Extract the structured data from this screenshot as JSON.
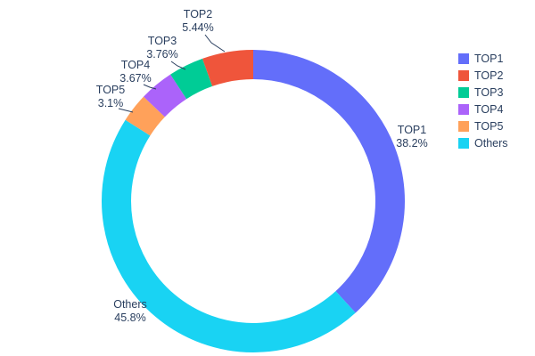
{
  "chart_data": {
    "type": "pie",
    "subtype": "donut",
    "hole": 0.8,
    "title": "",
    "legend_position": "right",
    "text_color": "#2a3f5f",
    "background_color": "#ffffff",
    "slices": [
      {
        "label": "TOP1",
        "value": 38.2,
        "display": "38.2%",
        "color": "#636EFA"
      },
      {
        "label": "TOP2",
        "value": 5.44,
        "display": "5.44%",
        "color": "#EF553B"
      },
      {
        "label": "TOP3",
        "value": 3.76,
        "display": "3.76%",
        "color": "#00CC96"
      },
      {
        "label": "TOP4",
        "value": 3.67,
        "display": "3.67%",
        "color": "#AB63FA"
      },
      {
        "label": "TOP5",
        "value": 3.1,
        "display": "3.1%",
        "color": "#FFA15A"
      },
      {
        "label": "Others",
        "value": 45.8,
        "display": "45.8%",
        "color": "#19D3F3"
      }
    ],
    "draw_order": [
      "TOP1",
      "Others",
      "TOP5",
      "TOP4",
      "TOP3",
      "TOP2"
    ],
    "legend": [
      "TOP1",
      "TOP2",
      "TOP3",
      "TOP4",
      "TOP5",
      "Others"
    ]
  }
}
